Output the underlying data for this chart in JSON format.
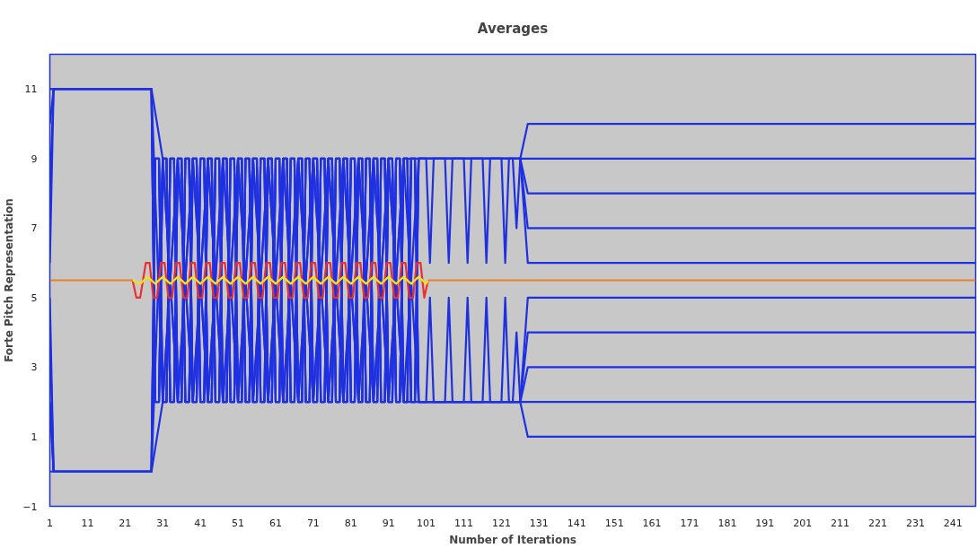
{
  "chart_data": {
    "type": "line",
    "title": "Averages",
    "xlabel": "Number of Iterations",
    "ylabel": "Forte Pitch Representation",
    "xlim": [
      1,
      247
    ],
    "ylim": [
      -1,
      12
    ],
    "xticks": [
      1,
      11,
      21,
      31,
      41,
      51,
      61,
      71,
      81,
      91,
      101,
      111,
      121,
      131,
      141,
      151,
      161,
      171,
      181,
      191,
      201,
      211,
      221,
      231,
      241
    ],
    "yticks": [
      -1,
      1,
      3,
      5,
      7,
      9,
      11
    ],
    "series": [
      {
        "color": "#1f30e0",
        "x": [
          1,
          2,
          28,
          29,
          30,
          31,
          32,
          33,
          34,
          35,
          36,
          37,
          38,
          39,
          40,
          41,
          42,
          43,
          44,
          45,
          46,
          47,
          48,
          49,
          50,
          51,
          52,
          53,
          54,
          55,
          56,
          57,
          58,
          59,
          60,
          61,
          62,
          63,
          64,
          65,
          66,
          67,
          68,
          69,
          70,
          71,
          72,
          73,
          74,
          75,
          76,
          77,
          78,
          79,
          80,
          81,
          82,
          83,
          84,
          85,
          86,
          87,
          88,
          89,
          90,
          91,
          92,
          93,
          94,
          95,
          96,
          97,
          98,
          99,
          126,
          128,
          247
        ],
        "values": [
          10,
          11,
          11,
          2,
          2,
          9,
          9,
          2,
          2,
          9,
          9,
          2,
          2,
          9,
          9,
          2,
          2,
          9,
          9,
          2,
          2,
          9,
          9,
          2,
          2,
          9,
          9,
          2,
          2,
          9,
          9,
          2,
          2,
          9,
          9,
          2,
          2,
          9,
          9,
          2,
          2,
          9,
          9,
          2,
          2,
          9,
          9,
          2,
          2,
          9,
          9,
          2,
          2,
          9,
          9,
          2,
          2,
          9,
          9,
          2,
          2,
          9,
          9,
          2,
          2,
          9,
          9,
          2,
          2,
          9,
          9,
          2,
          2,
          9,
          9,
          10,
          10
        ]
      },
      {
        "color": "#1f30e0",
        "x": [
          1,
          2,
          28,
          29,
          30,
          31,
          32,
          33,
          34,
          35,
          36,
          37,
          38,
          39,
          40,
          41,
          42,
          43,
          44,
          45,
          46,
          47,
          48,
          49,
          50,
          51,
          52,
          53,
          54,
          55,
          56,
          57,
          58,
          59,
          60,
          61,
          62,
          63,
          64,
          65,
          66,
          67,
          68,
          69,
          70,
          71,
          72,
          73,
          74,
          75,
          76,
          77,
          78,
          79,
          80,
          81,
          82,
          83,
          84,
          85,
          86,
          87,
          88,
          89,
          90,
          91,
          92,
          93,
          94,
          95,
          96,
          97,
          98,
          99,
          101,
          102,
          103,
          106,
          107,
          108,
          111,
          112,
          113,
          116,
          117,
          118,
          121,
          122,
          123,
          247
        ],
        "values": [
          8,
          11,
          11,
          2,
          2,
          9,
          9,
          2,
          2,
          9,
          9,
          2,
          2,
          9,
          9,
          2,
          2,
          9,
          9,
          2,
          2,
          9,
          9,
          2,
          2,
          9,
          9,
          2,
          2,
          9,
          9,
          2,
          2,
          9,
          9,
          2,
          2,
          9,
          9,
          2,
          2,
          9,
          9,
          2,
          2,
          9,
          9,
          2,
          2,
          9,
          9,
          2,
          2,
          9,
          9,
          2,
          2,
          9,
          9,
          2,
          2,
          9,
          9,
          2,
          2,
          9,
          9,
          2,
          2,
          9,
          9,
          2,
          2,
          9,
          9,
          6,
          9,
          9,
          6,
          9,
          9,
          6,
          9,
          9,
          6,
          9,
          9,
          6,
          9,
          9
        ]
      },
      {
        "color": "#1f30e0",
        "x": [
          1,
          2,
          28,
          31,
          35,
          39,
          43,
          47,
          51,
          55,
          59,
          63,
          67,
          71,
          75,
          79,
          83,
          87,
          91,
          95,
          99,
          124,
          125,
          126,
          128,
          247
        ],
        "values": [
          6,
          11,
          11,
          9,
          2,
          9,
          2,
          9,
          2,
          9,
          2,
          9,
          2,
          9,
          2,
          9,
          2,
          9,
          2,
          9,
          9,
          9,
          7,
          9,
          8,
          8
        ]
      },
      {
        "color": "#1f30e0",
        "x": [
          1,
          2,
          28,
          31,
          35,
          39,
          43,
          47,
          51,
          55,
          59,
          63,
          67,
          71,
          75,
          79,
          83,
          87,
          91,
          95,
          99,
          126,
          128,
          247
        ],
        "values": [
          11,
          11,
          11,
          2,
          9,
          2,
          9,
          2,
          9,
          2,
          9,
          2,
          9,
          2,
          9,
          2,
          9,
          2,
          9,
          2,
          9,
          9,
          7,
          7
        ]
      },
      {
        "color": "#1f30e0",
        "x": [
          1,
          2,
          28,
          29,
          30,
          31,
          32,
          33,
          34,
          35,
          36,
          37,
          38,
          39,
          40,
          41,
          42,
          43,
          44,
          45,
          46,
          47,
          48,
          49,
          50,
          51,
          52,
          53,
          54,
          55,
          56,
          57,
          58,
          59,
          60,
          61,
          62,
          63,
          64,
          65,
          66,
          67,
          68,
          69,
          70,
          71,
          72,
          73,
          74,
          75,
          76,
          77,
          78,
          79,
          80,
          81,
          82,
          83,
          84,
          85,
          86,
          87,
          88,
          89,
          90,
          91,
          92,
          93,
          94,
          95,
          96,
          97,
          98,
          99,
          126,
          128,
          247
        ],
        "values": [
          11,
          11,
          11,
          2,
          2,
          9,
          9,
          2,
          2,
          9,
          9,
          2,
          2,
          9,
          9,
          2,
          2,
          9,
          9,
          2,
          2,
          9,
          9,
          2,
          2,
          9,
          9,
          2,
          2,
          9,
          9,
          2,
          2,
          9,
          9,
          2,
          2,
          9,
          9,
          2,
          2,
          9,
          9,
          2,
          2,
          9,
          9,
          2,
          2,
          9,
          9,
          2,
          2,
          9,
          9,
          2,
          2,
          9,
          9,
          2,
          2,
          9,
          9,
          2,
          2,
          9,
          9,
          2,
          2,
          9,
          9,
          2,
          2,
          9,
          9,
          6,
          6
        ]
      },
      {
        "color": "#1f30e0",
        "x": [
          1,
          2,
          28,
          29,
          30,
          31,
          32,
          33,
          34,
          35,
          36,
          37,
          38,
          39,
          40,
          41,
          42,
          43,
          44,
          45,
          46,
          47,
          48,
          49,
          50,
          51,
          52,
          53,
          54,
          55,
          56,
          57,
          58,
          59,
          60,
          61,
          62,
          63,
          64,
          65,
          66,
          67,
          68,
          69,
          70,
          71,
          72,
          73,
          74,
          75,
          76,
          77,
          78,
          79,
          80,
          81,
          82,
          83,
          84,
          85,
          86,
          87,
          88,
          89,
          90,
          91,
          92,
          93,
          94,
          95,
          96,
          97,
          98,
          99,
          126,
          128,
          247
        ],
        "values": [
          5,
          0,
          0,
          9,
          9,
          2,
          2,
          9,
          9,
          2,
          2,
          9,
          9,
          2,
          2,
          9,
          9,
          2,
          2,
          9,
          9,
          2,
          2,
          9,
          9,
          2,
          2,
          9,
          9,
          2,
          2,
          9,
          9,
          2,
          2,
          9,
          9,
          2,
          2,
          9,
          9,
          2,
          2,
          9,
          9,
          2,
          2,
          9,
          9,
          2,
          2,
          9,
          9,
          2,
          2,
          9,
          9,
          2,
          2,
          9,
          9,
          2,
          2,
          9,
          9,
          2,
          2,
          9,
          9,
          2,
          2,
          9,
          9,
          2,
          2,
          1,
          1
        ]
      },
      {
        "color": "#1f30e0",
        "x": [
          1,
          2,
          28,
          29,
          30,
          31,
          32,
          33,
          34,
          35,
          36,
          37,
          38,
          39,
          40,
          41,
          42,
          43,
          44,
          45,
          46,
          47,
          48,
          49,
          50,
          51,
          52,
          53,
          54,
          55,
          56,
          57,
          58,
          59,
          60,
          61,
          62,
          63,
          64,
          65,
          66,
          67,
          68,
          69,
          70,
          71,
          72,
          73,
          74,
          75,
          76,
          77,
          78,
          79,
          80,
          81,
          82,
          83,
          84,
          85,
          86,
          87,
          88,
          89,
          90,
          91,
          92,
          93,
          94,
          95,
          96,
          97,
          98,
          99,
          101,
          102,
          103,
          106,
          107,
          108,
          111,
          112,
          113,
          116,
          117,
          118,
          121,
          122,
          123,
          247
        ],
        "values": [
          2,
          0,
          0,
          9,
          9,
          2,
          2,
          9,
          9,
          2,
          2,
          9,
          9,
          2,
          2,
          9,
          9,
          2,
          2,
          9,
          9,
          2,
          2,
          9,
          9,
          2,
          2,
          9,
          9,
          2,
          2,
          9,
          9,
          2,
          2,
          9,
          9,
          2,
          2,
          9,
          9,
          2,
          2,
          9,
          9,
          2,
          2,
          9,
          9,
          2,
          2,
          9,
          9,
          2,
          2,
          9,
          9,
          2,
          2,
          9,
          9,
          2,
          2,
          9,
          9,
          2,
          2,
          9,
          9,
          2,
          2,
          9,
          9,
          2,
          2,
          5,
          2,
          2,
          5,
          2,
          2,
          5,
          2,
          2,
          5,
          2,
          2,
          5,
          2,
          2
        ]
      },
      {
        "color": "#1f30e0",
        "x": [
          1,
          2,
          28,
          31,
          35,
          39,
          43,
          47,
          51,
          55,
          59,
          63,
          67,
          71,
          75,
          79,
          83,
          87,
          91,
          95,
          99,
          124,
          125,
          126,
          128,
          247
        ],
        "values": [
          2,
          0,
          0,
          9,
          2,
          9,
          2,
          9,
          2,
          9,
          2,
          9,
          2,
          9,
          2,
          9,
          2,
          9,
          2,
          9,
          2,
          2,
          4,
          2,
          3,
          3
        ]
      },
      {
        "color": "#1f30e0",
        "x": [
          1,
          2,
          28,
          31,
          35,
          39,
          43,
          47,
          51,
          55,
          59,
          63,
          67,
          71,
          75,
          79,
          83,
          87,
          91,
          95,
          99,
          126,
          128,
          247
        ],
        "values": [
          0,
          0,
          0,
          2,
          9,
          2,
          9,
          2,
          9,
          2,
          9,
          2,
          9,
          2,
          9,
          2,
          9,
          2,
          9,
          2,
          2,
          2,
          4,
          4
        ]
      },
      {
        "color": "#1f30e0",
        "x": [
          1,
          2,
          28,
          29,
          30,
          31,
          32,
          33,
          34,
          35,
          36,
          37,
          38,
          39,
          40,
          41,
          42,
          43,
          44,
          45,
          46,
          47,
          48,
          49,
          50,
          51,
          52,
          53,
          54,
          55,
          56,
          57,
          58,
          59,
          60,
          61,
          62,
          63,
          64,
          65,
          66,
          67,
          68,
          69,
          70,
          71,
          72,
          73,
          74,
          75,
          76,
          77,
          78,
          79,
          80,
          81,
          82,
          83,
          84,
          85,
          86,
          87,
          88,
          89,
          90,
          91,
          92,
          93,
          94,
          95,
          96,
          97,
          98,
          99,
          126,
          128,
          247
        ],
        "values": [
          4,
          0,
          0,
          9,
          9,
          2,
          2,
          9,
          9,
          2,
          2,
          9,
          9,
          2,
          2,
          9,
          9,
          2,
          2,
          9,
          9,
          2,
          2,
          9,
          9,
          2,
          2,
          9,
          9,
          2,
          2,
          9,
          9,
          2,
          2,
          9,
          9,
          2,
          2,
          9,
          9,
          2,
          2,
          9,
          9,
          2,
          2,
          9,
          9,
          2,
          2,
          9,
          9,
          2,
          2,
          9,
          9,
          2,
          2,
          9,
          9,
          2,
          2,
          9,
          9,
          2,
          2,
          9,
          9,
          2,
          2,
          9,
          9,
          2,
          2,
          5,
          5
        ]
      },
      {
        "color": "#e8822a",
        "x": [
          1,
          23,
          24,
          101.5,
          247
        ],
        "values": [
          5.5,
          5.5,
          null,
          5.5,
          5.5
        ]
      },
      {
        "color": "#e83030",
        "x": [
          23,
          24,
          25,
          26.5,
          27.5,
          28.5,
          29.5,
          30.5,
          31.5,
          32.5,
          33.5,
          34.5,
          35.5,
          36.5,
          37.5,
          38.5,
          39.5,
          40.5,
          41.5,
          42.5,
          43.5,
          44.5,
          45.5,
          46.5,
          47.5,
          48.5,
          49.5,
          50.5,
          51.5,
          52.5,
          53.5,
          54.5,
          55.5,
          56.5,
          57.5,
          58.5,
          59.5,
          60.5,
          61.5,
          62.5,
          63.5,
          64.5,
          65.5,
          66.5,
          67.5,
          68.5,
          69.5,
          70.5,
          71.5,
          72.5,
          73.5,
          74.5,
          75.5,
          76.5,
          77.5,
          78.5,
          79.5,
          80.5,
          81.5,
          82.5,
          83.5,
          84.5,
          85.5,
          86.5,
          87.5,
          88.5,
          89.5,
          90.5,
          91.5,
          92.5,
          93.5,
          94.5,
          95.5,
          96.5,
          97.5,
          98.5,
          99.5,
          100.5,
          101.5
        ],
        "values": [
          5.5,
          5,
          5,
          6,
          6,
          5,
          5,
          6,
          6,
          5,
          5,
          6,
          6,
          5,
          5,
          6,
          6,
          5,
          5,
          6,
          6,
          5,
          5,
          6,
          6,
          5,
          5,
          6,
          6,
          5,
          5,
          6,
          6,
          5,
          5,
          6,
          6,
          5,
          5,
          6,
          6,
          5,
          5,
          6,
          6,
          5,
          5,
          6,
          6,
          5,
          5,
          6,
          6,
          5,
          5,
          6,
          6,
          5,
          5,
          6,
          6,
          5,
          5,
          6,
          6,
          5,
          5,
          6,
          6,
          5,
          5,
          6,
          6,
          5,
          5,
          6,
          6,
          5,
          5.5
        ]
      },
      {
        "color": "#f2e21c",
        "x": [
          23,
          25,
          27,
          29,
          31,
          33,
          35,
          37,
          39,
          41,
          43,
          45,
          47,
          49,
          51,
          53,
          55,
          57,
          59,
          61,
          63,
          65,
          67,
          69,
          71,
          73,
          75,
          77,
          79,
          81,
          83,
          85,
          87,
          89,
          91,
          93,
          95,
          97,
          99,
          101,
          101.5
        ],
        "values": [
          5.5,
          5.4,
          5.6,
          5.4,
          5.6,
          5.4,
          5.6,
          5.4,
          5.6,
          5.4,
          5.6,
          5.4,
          5.6,
          5.4,
          5.6,
          5.4,
          5.6,
          5.4,
          5.6,
          5.4,
          5.6,
          5.4,
          5.6,
          5.4,
          5.6,
          5.4,
          5.6,
          5.4,
          5.6,
          5.4,
          5.6,
          5.4,
          5.6,
          5.4,
          5.6,
          5.4,
          5.6,
          5.4,
          5.6,
          5.4,
          5.5
        ]
      }
    ]
  }
}
